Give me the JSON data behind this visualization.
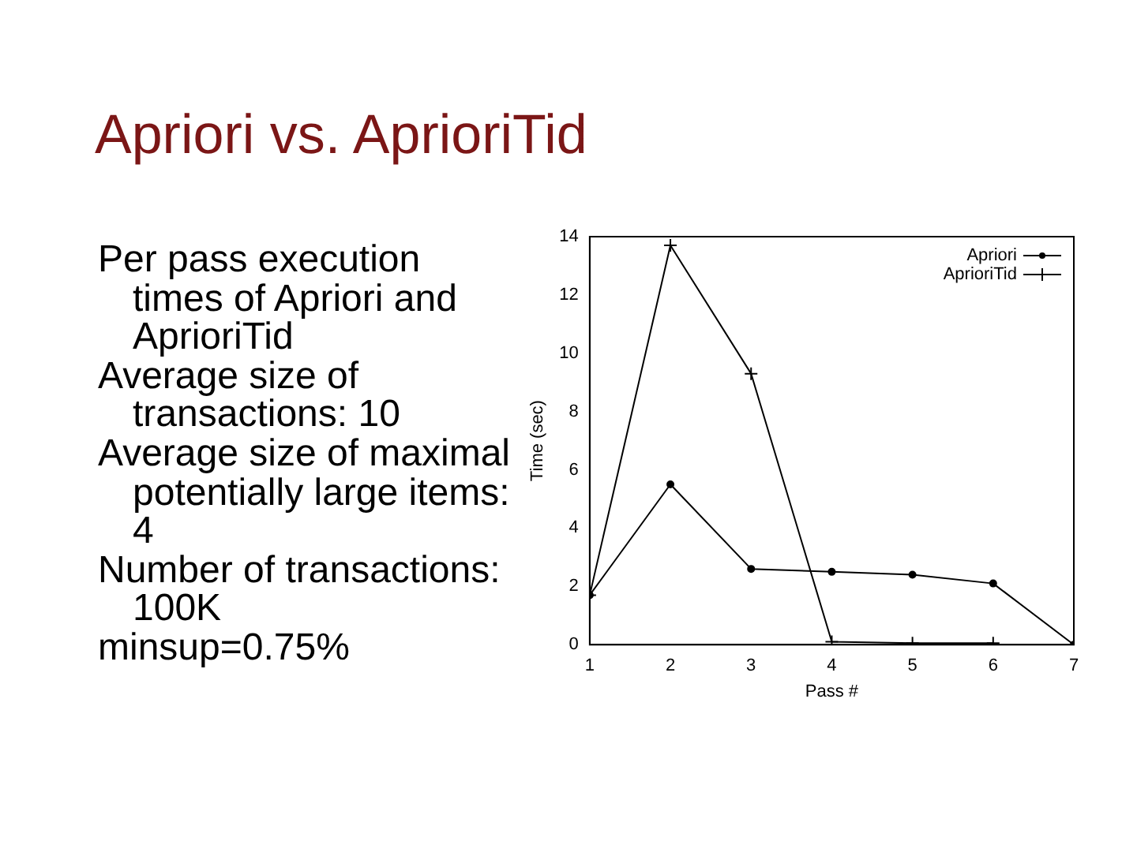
{
  "chart_data": {
    "type": "line",
    "title": "Apriori vs. AprioriTid",
    "annotations": [
      "Per pass execution times of Apriori and AprioriTid",
      "Average size of transactions: 10",
      "Average size of maximal potentially large items: 4",
      "Number of transactions: 100K",
      "minsup=0.75%"
    ],
    "xlabel": "Pass #",
    "ylabel": "Time (sec)",
    "x": [
      1,
      2,
      3,
      4,
      5,
      6,
      7
    ],
    "series": [
      {
        "name": "Apriori",
        "color": "#000000",
        "marker": "circle",
        "values": [
          1.7,
          5.5,
          2.6,
          2.5,
          2.4,
          2.1,
          0
        ]
      },
      {
        "name": "AprioriTid",
        "color": "#000000",
        "marker": "cross",
        "values": [
          1.7,
          13.7,
          9.3,
          0.1,
          0.05,
          0.05,
          null
        ]
      }
    ],
    "xlim": [
      1,
      7
    ],
    "xticks": [
      1,
      2,
      3,
      4,
      5,
      6,
      7
    ],
    "ylim": [
      0,
      14
    ],
    "yticks": [
      0,
      2,
      4,
      6,
      8,
      10,
      12,
      14
    ],
    "grid": false,
    "legend": "top right",
    "line_style": "solid"
  }
}
